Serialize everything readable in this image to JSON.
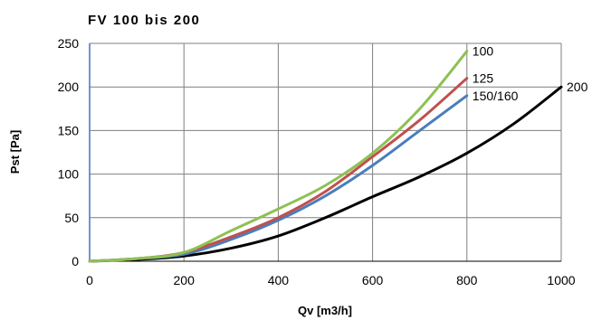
{
  "chart_data": {
    "type": "line",
    "title": "FV 100 bis 200",
    "xlabel": "Qv [m3/h]",
    "ylabel": "Pst [Pa]",
    "xlim": [
      0,
      1000
    ],
    "ylim": [
      0,
      250
    ],
    "x_ticks": [
      "0",
      "200",
      "400",
      "600",
      "800",
      "1000"
    ],
    "y_ticks": [
      "0",
      "50",
      "100",
      "150",
      "200",
      "250"
    ],
    "grid": true,
    "series": [
      {
        "name": "100",
        "color": "#8dc153",
        "x": [
          0,
          100,
          200,
          300,
          400,
          500,
          600,
          700,
          800
        ],
        "y": [
          0,
          3,
          10,
          35,
          60,
          87,
          124,
          175,
          241
        ]
      },
      {
        "name": "125",
        "color": "#c0504d",
        "x": [
          0,
          100,
          200,
          300,
          400,
          500,
          600,
          700,
          800
        ],
        "y": [
          0,
          3,
          10,
          28,
          50,
          80,
          120,
          162,
          210
        ]
      },
      {
        "name": "150/160",
        "color": "#4a7ebb",
        "x": [
          0,
          100,
          200,
          300,
          400,
          500,
          600,
          700,
          800
        ],
        "y": [
          0,
          3,
          8,
          25,
          47,
          75,
          110,
          150,
          190
        ]
      },
      {
        "name": "200",
        "color": "#000000",
        "x": [
          0,
          100,
          200,
          300,
          400,
          500,
          600,
          700,
          800,
          900,
          1000
        ],
        "y": [
          0,
          2,
          6,
          15,
          29,
          50,
          74,
          97,
          124,
          158,
          200
        ]
      }
    ]
  }
}
